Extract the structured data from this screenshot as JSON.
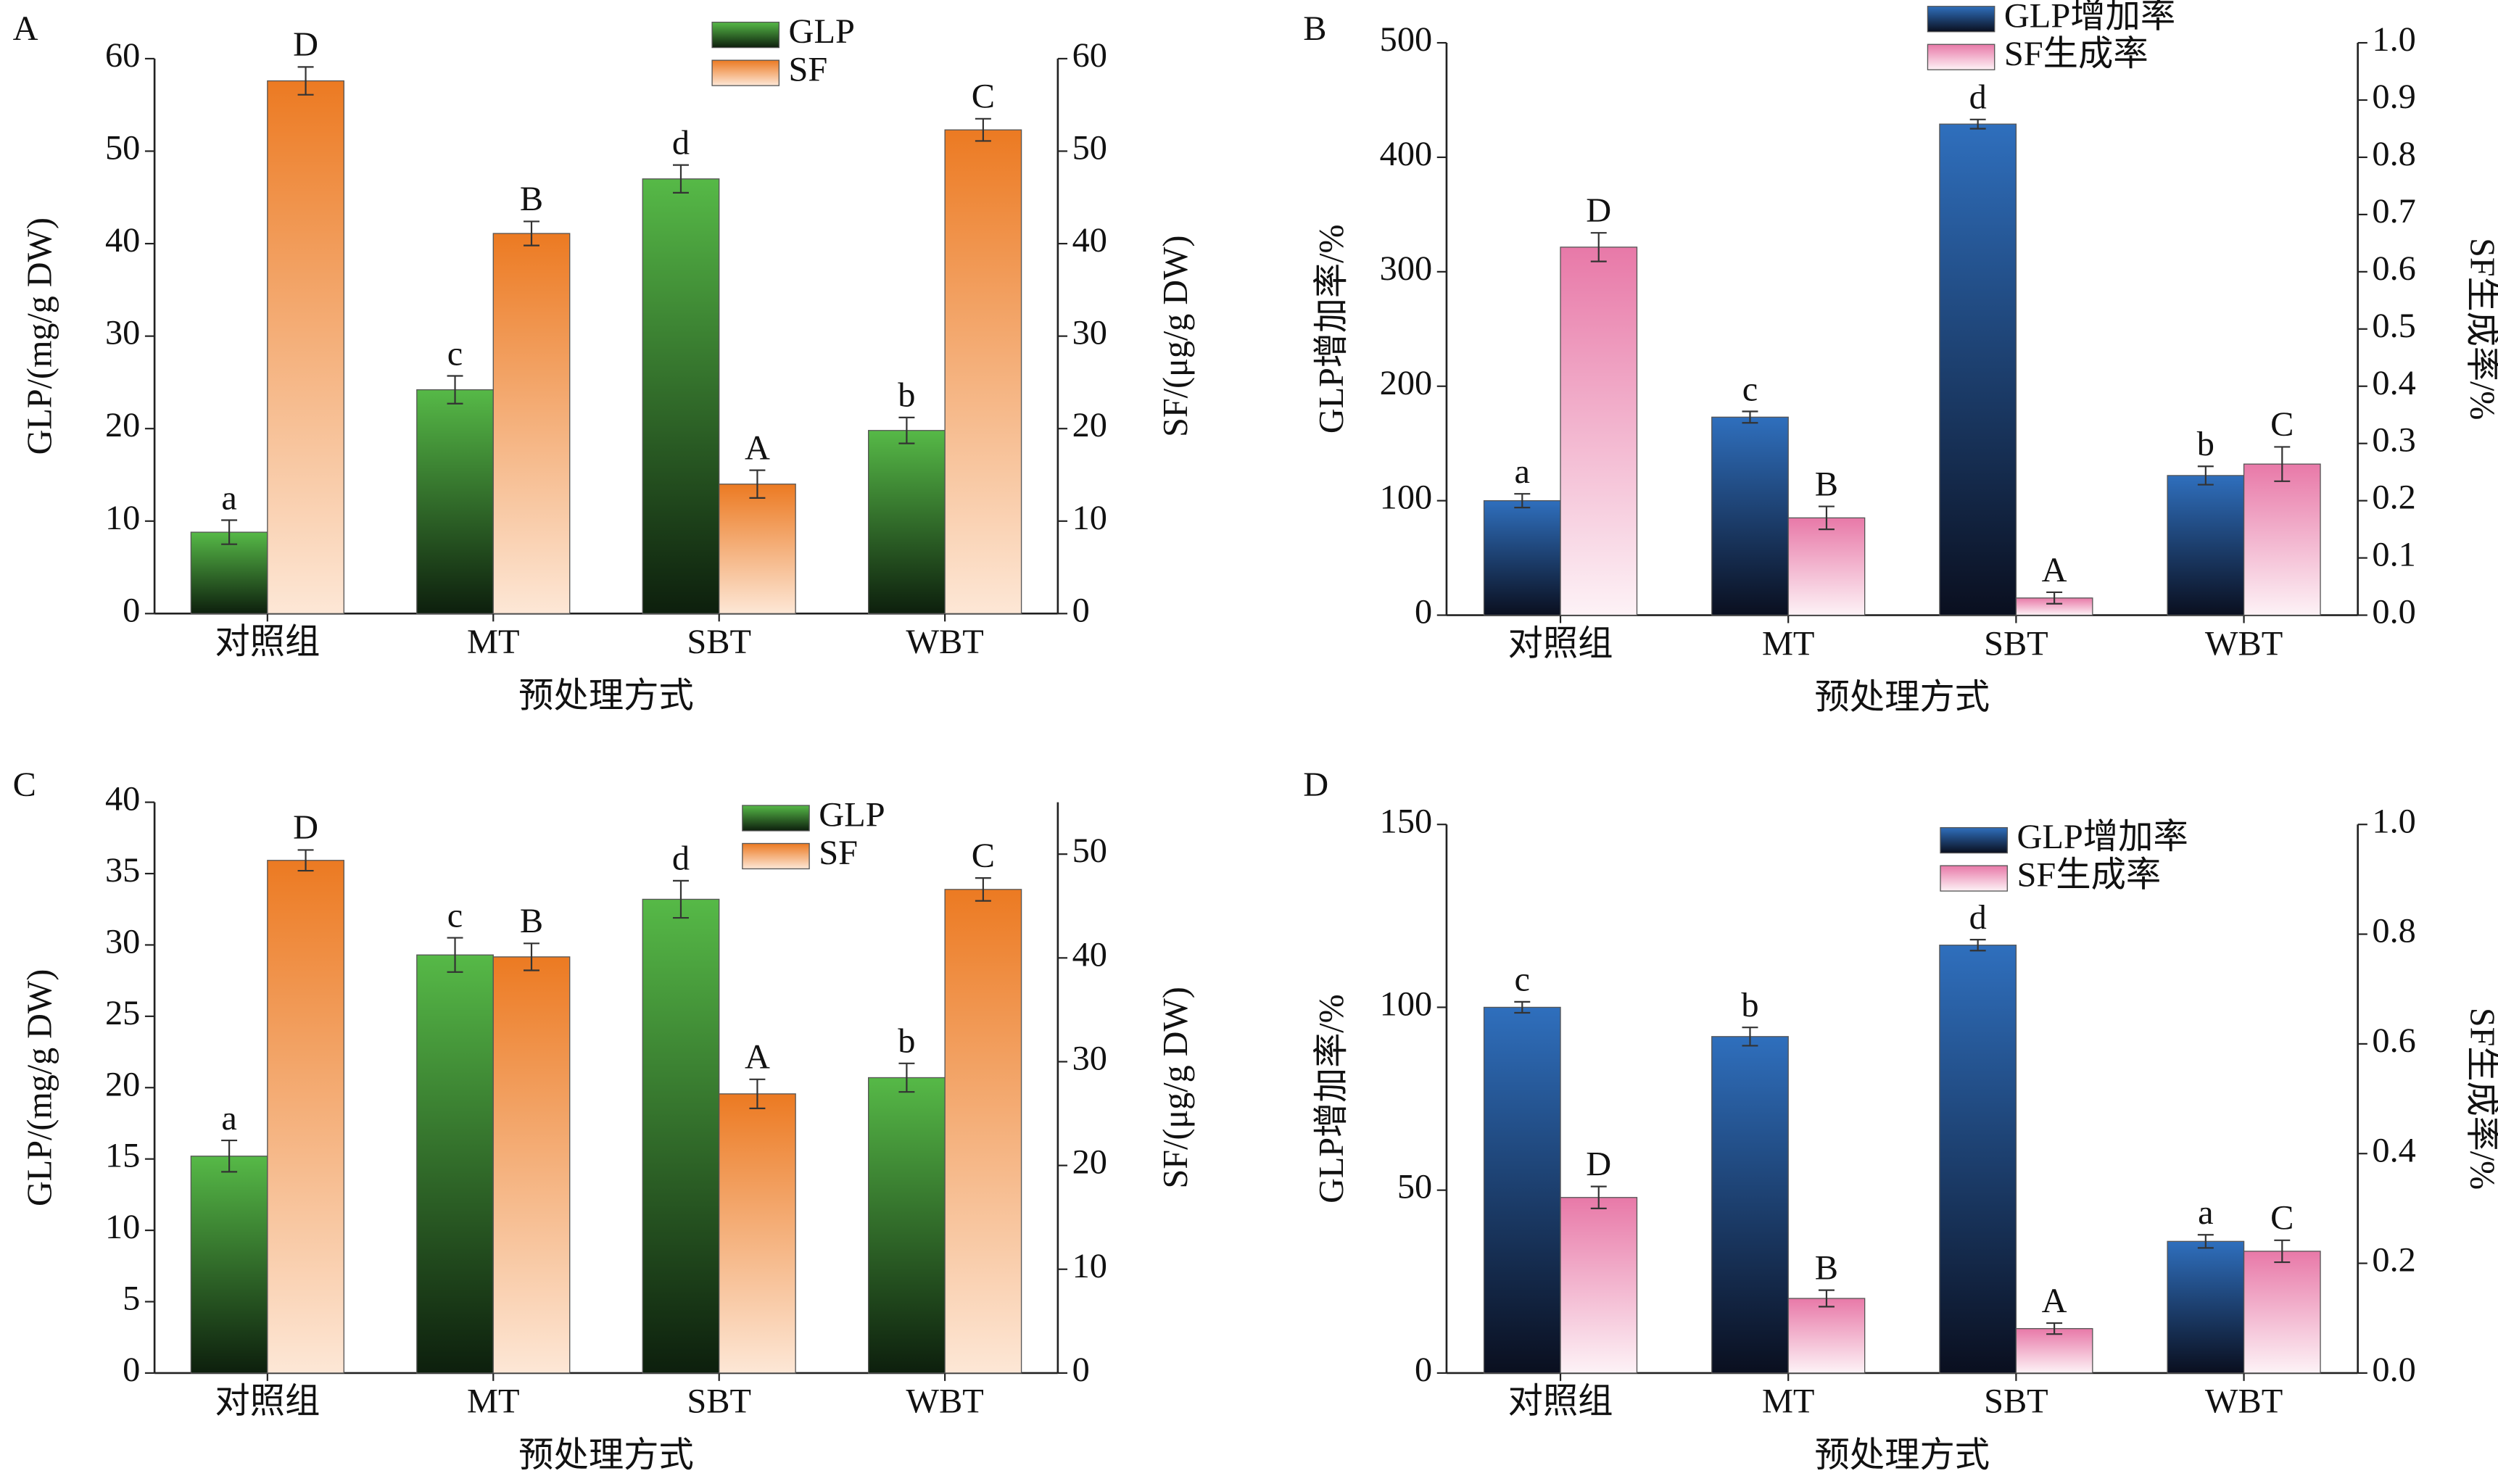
{
  "chart_data": [
    {
      "type": "bar",
      "panel": "A",
      "xlabel": "预处理方式",
      "ylabel": "GLP/(mg/g DW)",
      "y2label": "SF/(μg/g DW)",
      "categories": [
        "对照组",
        "MT",
        "SBT",
        "WBT"
      ],
      "ylim": [
        0,
        60
      ],
      "yticks": [
        0,
        10,
        20,
        30,
        40,
        50,
        60
      ],
      "y2lim": [
        0,
        60
      ],
      "y2ticks": [
        0,
        10,
        20,
        30,
        40,
        50,
        60
      ],
      "legend": "upper center",
      "series": [
        {
          "name": "GLP",
          "color": "#56b947",
          "gradient_end": "#0d1f0d",
          "values": [
            8.8,
            24.2,
            47,
            19.8
          ],
          "errors": [
            1.3,
            1.5,
            1.5,
            1.4
          ],
          "annotations": [
            "a",
            "c",
            "d",
            "b"
          ]
        },
        {
          "name": "SF",
          "axis": "y2",
          "color": "#ec7a22",
          "gradient_end": "#fde7d6",
          "values": [
            57.6,
            41.1,
            14,
            52.3
          ],
          "errors": [
            1.5,
            1.3,
            1.5,
            1.2
          ],
          "annotations": [
            "D",
            "B",
            "A",
            "C"
          ]
        }
      ]
    },
    {
      "type": "bar",
      "panel": "B",
      "xlabel": "预处理方式",
      "ylabel": "GLP增加率/%",
      "y2label": "SF生成率/%",
      "categories": [
        "对照组",
        "MT",
        "SBT",
        "WBT"
      ],
      "ylim": [
        0,
        500
      ],
      "yticks": [
        0,
        100,
        200,
        300,
        400,
        500
      ],
      "y2lim": [
        0,
        1
      ],
      "y2ticks": [
        {
          "value": 0,
          "label": "0.0"
        },
        0.1,
        0.2,
        0.3,
        0.4,
        0.5,
        0.6,
        0.7,
        0.8,
        0.9,
        {
          "value": 1,
          "label": "1.0"
        }
      ],
      "legend": "upper center",
      "series": [
        {
          "name": "GLP增加率",
          "color": "#2f6fbd",
          "gradient_end": "#0a0f1f",
          "values": [
            100,
            173,
            429,
            122
          ],
          "errors": [
            6,
            5,
            4,
            8
          ],
          "annotations": [
            "a",
            "c",
            "d",
            "b"
          ]
        },
        {
          "name": "SF生成率",
          "axis": "y2",
          "color": "#e879a8",
          "gradient_end": "#fdf2f6",
          "values": [
            0.643,
            0.17,
            0.03,
            0.264
          ],
          "errors": [
            0.025,
            0.02,
            0.01,
            0.03
          ],
          "annotations": [
            "D",
            "B",
            "A",
            "C"
          ]
        }
      ]
    },
    {
      "type": "bar",
      "panel": "C",
      "xlabel": "预处理方式",
      "ylabel": "GLP/(mg/g DW)",
      "y2label": "SF/(μg/g DW)",
      "categories": [
        "对照组",
        "MT",
        "SBT",
        "WBT"
      ],
      "ylim": [
        0,
        40
      ],
      "yticks": [
        0,
        5,
        10,
        15,
        20,
        25,
        30,
        35,
        40
      ],
      "y2lim": [
        0,
        55
      ],
      "y2ticks": [
        0,
        10,
        20,
        30,
        40,
        50
      ],
      "legend": "upper right",
      "series": [
        {
          "name": "GLP",
          "color": "#56b947",
          "gradient_end": "#0d1f0d",
          "values": [
            15.2,
            29.3,
            33.2,
            20.7
          ],
          "errors": [
            1.1,
            1.2,
            1.3,
            1.0
          ],
          "annotations": [
            "a",
            "c",
            "d",
            "b"
          ]
        },
        {
          "name": "SF",
          "axis": "y2",
          "color": "#ec7a22",
          "gradient_end": "#fde7d6",
          "values": [
            49.4,
            40.1,
            26.9,
            46.6
          ],
          "errors": [
            1.0,
            1.3,
            1.4,
            1.1
          ],
          "annotations": [
            "D",
            "B",
            "A",
            "C"
          ]
        }
      ]
    },
    {
      "type": "bar",
      "panel": "D",
      "xlabel": "预处理方式",
      "ylabel": "GLP增加率/%",
      "y2label": "SF生成率/%",
      "categories": [
        "对照组",
        "MT",
        "SBT",
        "WBT"
      ],
      "ylim": [
        0,
        150
      ],
      "yticks": [
        0,
        50,
        100,
        150
      ],
      "y2lim": [
        0,
        1
      ],
      "y2ticks": [
        {
          "value": 0,
          "label": "0.0"
        },
        0.2,
        0.4,
        0.6,
        0.8,
        {
          "value": 1,
          "label": "1.0"
        }
      ],
      "legend": "upper right",
      "series": [
        {
          "name": "GLP增加率",
          "color": "#2f6fbd",
          "gradient_end": "#0a0f1f",
          "values": [
            100,
            92,
            117,
            36
          ],
          "errors": [
            1.5,
            2.5,
            1.5,
            1.8
          ],
          "annotations": [
            "c",
            "b",
            "d",
            "a"
          ]
        },
        {
          "name": "SF生成率",
          "axis": "y2",
          "color": "#e879a8",
          "gradient_end": "#fdf2f6",
          "values": [
            0.32,
            0.136,
            0.081,
            0.222
          ],
          "errors": [
            0.02,
            0.015,
            0.01,
            0.02
          ],
          "annotations": [
            "D",
            "B",
            "A",
            "C"
          ]
        }
      ]
    }
  ]
}
